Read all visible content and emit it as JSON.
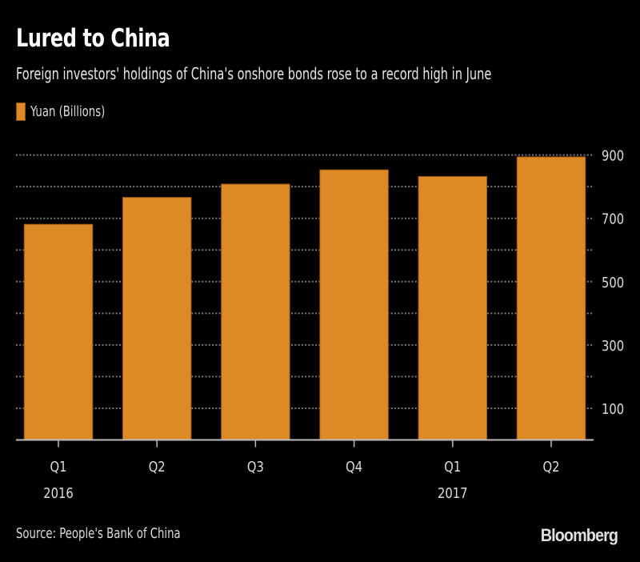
{
  "header": {
    "title": "Lured to China",
    "subtitle": "Foreign investors' holdings of China's onshore bonds rose to a record high in June"
  },
  "footer": {
    "source": "Source: People's Bank of China",
    "brand": "Bloomberg"
  },
  "colors": {
    "background": "#000000",
    "bar": "#DD8A26",
    "grid": "#7a7a7a",
    "axis": "#bdbdbd",
    "text": "#dcdcdc"
  },
  "chart_data": {
    "type": "bar",
    "title": "Lured to China",
    "subtitle": "Foreign investors' holdings of China's onshore bonds rose to a record high in June",
    "xlabel": "",
    "ylabel": "Yuan (Billions)",
    "legend": [
      {
        "label": "Yuan (Billions)",
        "color": "#DD8A26"
      }
    ],
    "legend_position": "top-left",
    "categories": [
      "Q1 2016",
      "Q2 2016",
      "Q3 2016",
      "Q4 2016",
      "Q1 2017",
      "Q2 2017"
    ],
    "x_tick_labels": [
      "Q1",
      "Q2",
      "Q3",
      "Q4",
      "Q1",
      "Q2"
    ],
    "x_year_labels": [
      "2016",
      "",
      "",
      "",
      "2017",
      ""
    ],
    "series": [
      {
        "name": "Yuan (Billions)",
        "values": [
          681,
          766,
          808,
          853,
          832,
          894
        ]
      }
    ],
    "ylim": [
      0,
      900
    ],
    "y_ticks": [
      100,
      300,
      500,
      700,
      900
    ],
    "y_gridlines": [
      100,
      200,
      300,
      400,
      500,
      600,
      700,
      800,
      900
    ],
    "y_axis_position": "right",
    "grid": true
  }
}
